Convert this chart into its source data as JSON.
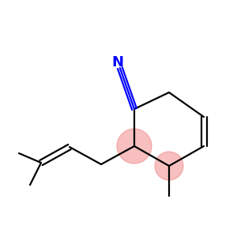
{
  "background_color": "#ffffff",
  "bond_color": "#000000",
  "cn_color": "#0000ff",
  "highlight_color": "#f08080",
  "highlight_alpha": 0.5,
  "figsize": [
    3.0,
    3.0
  ],
  "dpi": 100,
  "bond_lw": 1.6,
  "cn_label": "N",
  "cn_label_fontsize": 13,
  "cn_label_fontweight": "bold"
}
